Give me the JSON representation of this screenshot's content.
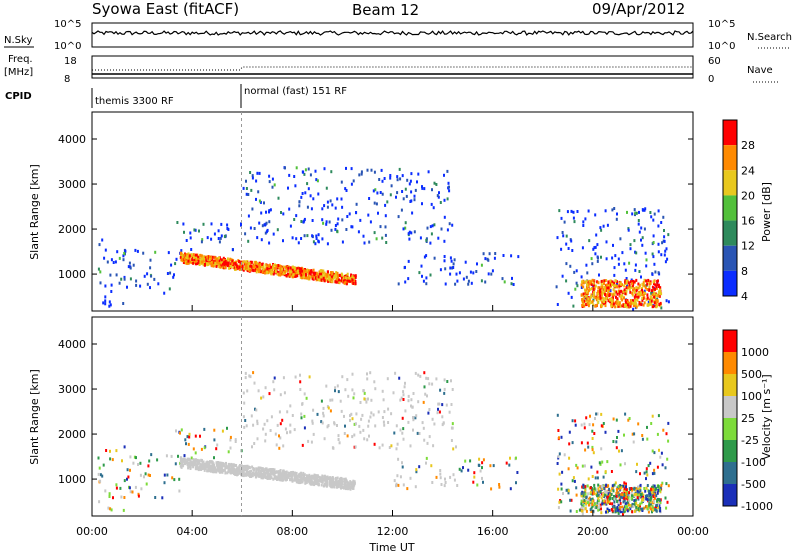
{
  "header": {
    "title": "Syowa East (fitACF)",
    "beam": "Beam 12",
    "date": "09/Apr/2012"
  },
  "status_panels": {
    "nsky_label": "N.Sky",
    "nsky_ticks": [
      "10^5",
      "10^0"
    ],
    "nsearch_label": "N.Search",
    "nsearch_ticks": [
      "10^5",
      "10^0"
    ],
    "freq_label": "Freq.",
    "freq_unit": "[MHz]",
    "freq_ticks": [
      "18",
      "8"
    ],
    "nave_label": "Nave",
    "nave_ticks": [
      "60",
      "0"
    ],
    "cpid_label": "CPID",
    "cpid_modes": [
      "themis 3300 RF",
      "normal (fast) 151 RF"
    ],
    "mode_change_time": "05:58"
  },
  "chart_data": [
    {
      "type": "heatmap",
      "name": "power",
      "ylabel": "Slant Range [km]",
      "xlabel": "",
      "x_range_hours": [
        0,
        24
      ],
      "ylim": [
        180,
        4600
      ],
      "yticks": [
        "1000",
        "2000",
        "3000",
        "4000"
      ],
      "colorbar_label": "Power [dB]",
      "colorbar_ticks": [
        "28",
        "24",
        "20",
        "16",
        "12",
        "8",
        "4"
      ],
      "colors": [
        "#0b2dff",
        "#2a55b4",
        "#2e8a5c",
        "#52c03a",
        "#e8c81e",
        "#ff8a00",
        "#ff0000"
      ],
      "scatter_regions": [
        {
          "t": [
            0.2,
            1.3
          ],
          "r": [
            300,
            1800
          ]
        },
        {
          "t": [
            1.2,
            3.5
          ],
          "r": [
            600,
            1600
          ]
        },
        {
          "t": [
            3.3,
            6.0
          ],
          "r": [
            1500,
            2200
          ]
        },
        {
          "t": [
            6.0,
            14.5
          ],
          "r": [
            1700,
            3400
          ]
        },
        {
          "t": [
            12.0,
            17.0
          ],
          "r": [
            800,
            1500
          ]
        },
        {
          "t": [
            18.5,
            23.0
          ],
          "r": [
            250,
            2500
          ]
        }
      ],
      "enhanced_band": {
        "t": [
          3.5,
          10.5
        ],
        "r_start": 1400,
        "r_end": 900,
        "peak": 24
      }
    },
    {
      "type": "heatmap",
      "name": "velocity",
      "ylabel": "Slant Range [km]",
      "xlabel": "Time UT",
      "x_range_hours": [
        0,
        24
      ],
      "xticks": [
        "00:00",
        "04:00",
        "08:00",
        "12:00",
        "16:00",
        "20:00",
        "00:00"
      ],
      "ylim": [
        180,
        4600
      ],
      "yticks": [
        "1000",
        "2000",
        "3000",
        "4000"
      ],
      "colorbar_label": "Velocity [m s⁻¹]",
      "colorbar_ticks": [
        "1000",
        "500",
        "100",
        "25",
        "-25",
        "-100",
        "-500",
        "-1000"
      ],
      "colors": [
        "#1a2fb8",
        "#2e6f8f",
        "#2e9a4a",
        "#7ddb3a",
        "#c8c8c8",
        "#e8c81e",
        "#ff8a00",
        "#ff0000"
      ],
      "ground_scatter_color": "#c8c8c8"
    }
  ]
}
